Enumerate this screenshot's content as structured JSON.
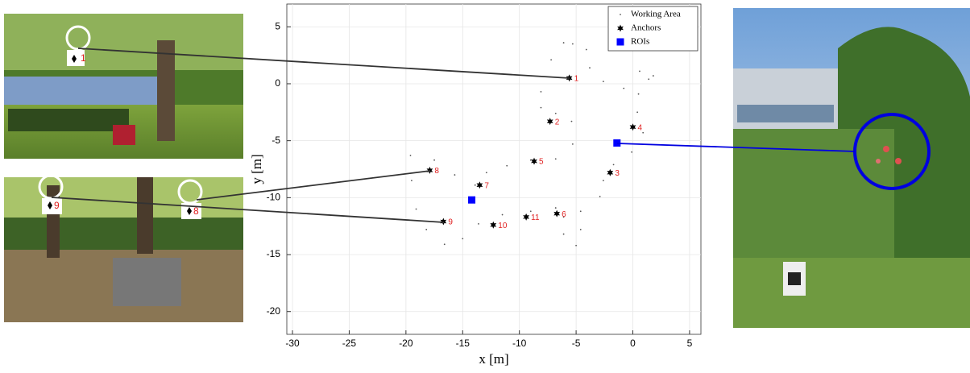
{
  "chart_data": {
    "type": "scatter",
    "xlabel": "x [m]",
    "ylabel": "y [m]",
    "xlim": [
      -30.5,
      6
    ],
    "ylim": [
      -22,
      7
    ],
    "xticks": [
      -30,
      -25,
      -20,
      -15,
      -10,
      -5,
      0,
      5
    ],
    "yticks": [
      5,
      0,
      -5,
      -10,
      -15,
      -20
    ],
    "grid": true,
    "legend": "upper right",
    "series": [
      {
        "name": "Working Area",
        "color": "#555555",
        "marker": "dot",
        "x": [
          -6.1,
          -7.2,
          -8.1,
          -8.1,
          -6.8,
          -5.4,
          -5.3,
          -6.8,
          -9.0,
          -11.1,
          -12.9,
          -13.9,
          -15.7,
          -17.5,
          -19.6,
          -19.5,
          -19.1,
          -18.2,
          -16.6,
          -15.0,
          -13.6,
          -11.5,
          -9.0,
          -6.8,
          -6.1,
          -6.1,
          -5.0,
          -4.6,
          -4.6,
          -2.9,
          -2.6,
          -1.7,
          -0.1,
          0.9,
          0.4,
          0.5,
          1.4,
          1.8,
          0.6,
          -0.8,
          -2.6,
          -3.8,
          -4.1,
          -5.3
        ],
        "values": [
          3.6,
          2.1,
          -0.7,
          -2.1,
          -2.6,
          -3.3,
          -5.3,
          -6.6,
          -6.7,
          -7.2,
          -7.8,
          -8.9,
          -8.0,
          -6.7,
          -6.3,
          -8.5,
          -11.0,
          -12.8,
          -14.1,
          -13.6,
          -12.3,
          -11.5,
          -11.2,
          -10.9,
          -11.7,
          -13.2,
          -14.2,
          -12.8,
          -11.2,
          -9.9,
          -8.5,
          -7.1,
          -6.0,
          -4.3,
          -2.5,
          -0.9,
          0.4,
          0.7,
          1.1,
          -0.4,
          0.2,
          1.4,
          3.0,
          3.5
        ]
      },
      {
        "name": "Anchors",
        "color": "#000000",
        "marker": "star",
        "x": [
          -5.6,
          -7.3,
          -2.0,
          0.0,
          -8.7,
          -6.7,
          -13.5,
          -17.9,
          -16.7,
          -12.3,
          -9.4
        ],
        "values": [
          0.5,
          -3.3,
          -7.8,
          -3.8,
          -6.8,
          -11.4,
          -8.9,
          -7.6,
          -12.1,
          -12.4,
          -11.7
        ],
        "labels": [
          "1",
          "2",
          "3",
          "4",
          "5",
          "6",
          "7",
          "8",
          "9",
          "10",
          "11"
        ],
        "label_color": "#e02020"
      },
      {
        "name": "ROIs",
        "color": "#0000ff",
        "marker": "square",
        "x": [
          -14.2,
          -1.4
        ],
        "values": [
          -10.2,
          -5.2
        ]
      }
    ]
  },
  "photos": [
    {
      "markers": [
        "1"
      ]
    },
    {
      "markers": [
        "9",
        "8"
      ]
    }
  ]
}
